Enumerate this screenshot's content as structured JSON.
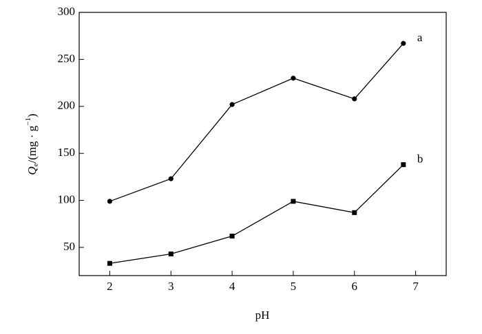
{
  "chart_data": {
    "type": "line",
    "xlabel": "pH",
    "ylabel": {
      "symbol": "Q",
      "subscript": "e",
      "unit": "/(mg · g",
      "superscript": "−1",
      "close": ")"
    },
    "xlim": [
      1.5,
      7.5
    ],
    "xticks": [
      2,
      3,
      4,
      5,
      6,
      7
    ],
    "ylim": [
      20,
      300
    ],
    "yticks": [
      50,
      100,
      150,
      200,
      250,
      300
    ],
    "grid": false,
    "series": [
      {
        "name": "a",
        "color": "#000000",
        "marker": "circle",
        "x": [
          2,
          3,
          4,
          5,
          6,
          6.8
        ],
        "values": [
          99,
          123,
          202,
          230,
          208,
          267
        ]
      },
      {
        "name": "b",
        "color": "#000000",
        "marker": "square",
        "x": [
          2,
          3,
          4,
          5,
          6,
          6.8
        ],
        "values": [
          33,
          43,
          62,
          99,
          87,
          138
        ]
      }
    ]
  }
}
